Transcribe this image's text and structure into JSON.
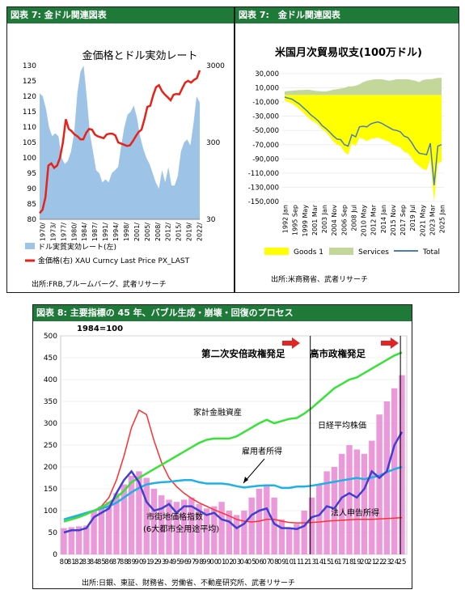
{
  "panels": {
    "p1_header": "図表 7: 金ドル関連図表",
    "p2_header": "図表 7:　金ドル関連図表",
    "p3_header": "図表 8: 主要指標の 45 年、バブル生成・崩壊・回復のプロセス"
  },
  "colors": {
    "header_green": "#1f7a3a",
    "dollar_area": "#9dc3e6",
    "gold_line": "#e8221a",
    "goods": "#ffff00",
    "services": "#c4d79b",
    "total": "#4a7ebb",
    "pink_bars": "#e787d4",
    "land": "#4040d0",
    "financial": "#39e239",
    "employee": "#1fb0e6",
    "corp": "#ff3030"
  },
  "chart_data": [
    {
      "type": "area",
      "title": "金価格とドル実効レート",
      "x_ticks": [
        "1970/",
        "1973/",
        "1977/",
        "1980/",
        "1984/",
        "1987/",
        "1991/",
        "1994/",
        "1998/",
        "2001/",
        "2005/",
        "2008/",
        "2012/",
        "2015/",
        "2019/",
        "2022/"
      ],
      "left_ticks": [
        "80",
        "85",
        "90",
        "95",
        "100",
        "105",
        "110",
        "115",
        "120",
        "125",
        "130"
      ],
      "right_ticks": [
        "30",
        "300",
        "3000"
      ],
      "ylim_left": [
        80,
        130
      ],
      "right_axis": "log",
      "ylim_right": [
        30,
        3000
      ],
      "series": [
        {
          "name": "ドル実質実効レート(左)",
          "values": [
            121,
            120,
            116,
            110,
            107,
            108,
            107,
            100,
            98,
            99,
            102,
            108,
            121,
            128,
            130,
            120,
            108,
            102,
            96,
            95,
            92,
            93,
            92,
            95,
            96,
            97,
            104,
            110,
            114,
            115,
            117,
            113,
            107,
            103,
            100,
            98,
            95,
            92,
            90,
            96,
            92,
            97,
            91,
            91,
            94,
            102,
            105,
            106,
            104,
            111,
            120,
            118
          ]
        },
        {
          "name": "金価格(右) XAU Curncy Last Price PX_LAST",
          "values": [
            36,
            40,
            58,
            150,
            160,
            140,
            150,
            190,
            300,
            600,
            450,
            420,
            380,
            360,
            330,
            330,
            400,
            450,
            440,
            380,
            360,
            350,
            340,
            380,
            390,
            390,
            370,
            300,
            290,
            280,
            270,
            275,
            310,
            360,
            410,
            440,
            600,
            870,
            900,
            1230,
            1570,
            1670,
            1400,
            1260,
            1160,
            1060,
            1250,
            1280,
            1270,
            1520,
            1800,
            1900,
            1800,
            1950,
            2050,
            2600
          ]
        }
      ]
    },
    {
      "type": "bar",
      "title": "米国月次貿易収支(100万ドル)",
      "x_ticks": [
        "1992 Jan",
        "1995 Sep",
        "1999 May",
        "2001 Mar",
        "2003 Jan",
        "2004 Nov",
        "2006 Sep",
        "2008 Jul",
        "2010 May",
        "2012 Mar",
        "2014 Jan",
        "2015 Nov",
        "2017 Sep",
        "2019 Jul",
        "2021 May",
        "2023 Mar",
        "2025 Jan"
      ],
      "y_ticks": [
        "30,000",
        "10,000",
        "-10,000",
        "-30,000",
        "-50,000",
        "-70,000",
        "-90,000",
        "-110,000",
        "-130,000",
        "-150,000"
      ],
      "ylim": [
        -150000,
        30000
      ],
      "series": [
        {
          "name": "Goods 1",
          "values": [
            -8000,
            -10000,
            -12000,
            -16000,
            -20000,
            -25000,
            -30000,
            -35000,
            -38000,
            -42000,
            -48000,
            -52000,
            -58000,
            -65000,
            -70000,
            -72000,
            -80000,
            -84000,
            -68000,
            -72000,
            -60000,
            -62000,
            -65000,
            -62000,
            -61000,
            -60000,
            -62000,
            -64000,
            -66000,
            -70000,
            -72000,
            -74000,
            -80000,
            -82000,
            -88000,
            -96000,
            -100000,
            -104000,
            -106000,
            -90000,
            -150000,
            -96000,
            -94000
          ]
        },
        {
          "name": "Services",
          "values": [
            5000,
            5500,
            6000,
            6500,
            7000,
            7000,
            7500,
            7000,
            6000,
            5500,
            5000,
            5000,
            6000,
            7500,
            8000,
            9000,
            10000,
            12000,
            12000,
            13000,
            15000,
            18000,
            20000,
            21000,
            22000,
            22000,
            22000,
            21000,
            20000,
            21000,
            22000,
            22000,
            22000,
            22000,
            21000,
            20000,
            18000,
            21000,
            22000,
            22000,
            23000,
            24000,
            24000
          ]
        },
        {
          "name": "Total",
          "values": [
            -3000,
            -4500,
            -6000,
            -9500,
            -13000,
            -18000,
            -22500,
            -28000,
            -32000,
            -36500,
            -43000,
            -47000,
            -52000,
            -57500,
            -62000,
            -63000,
            -70000,
            -72000,
            -56000,
            -59000,
            -45000,
            -44000,
            -45000,
            -41000,
            -39000,
            -38000,
            -40000,
            -43000,
            -46000,
            -49000,
            -50000,
            -52000,
            -58000,
            -60000,
            -67000,
            -76000,
            -82000,
            -83000,
            -84000,
            -68000,
            -127000,
            -72000,
            -70000
          ]
        }
      ]
    },
    {
      "type": "line",
      "title": "1984=100",
      "x_ticks": [
        "80",
        "81",
        "82",
        "83",
        "84",
        "85",
        "86",
        "87",
        "88",
        "89",
        "90",
        "91",
        "92",
        "93",
        "94",
        "95",
        "96",
        "97",
        "98",
        "99",
        "00",
        "01",
        "02",
        "03",
        "04",
        "05",
        "06",
        "07",
        "08",
        "09",
        "10",
        "11",
        "12",
        "13",
        "14",
        "15",
        "16",
        "17",
        "18",
        "19",
        "20",
        "21",
        "22",
        "23",
        "24",
        "25"
      ],
      "y_ticks": [
        "0",
        "50",
        "100",
        "150",
        "200",
        "250",
        "300",
        "350",
        "400",
        "450",
        "500"
      ],
      "ylim": [
        0,
        500
      ],
      "annotations": [
        "第二次安倍政権発足",
        "高市政権発足",
        "家計金融資産",
        "日経平均株価",
        "雇用者所得",
        "市街地価格指数",
        "(6大都市全用途平均)",
        "法人申告所得"
      ],
      "series": [
        {
          "name": "日経平均株価",
          "values": [
            50,
            55,
            55,
            60,
            85,
            95,
            105,
            140,
            170,
            190,
            165,
            120,
            100,
            105,
            115,
            95,
            110,
            110,
            100,
            90,
            95,
            80,
            75,
            60,
            70,
            90,
            100,
            105,
            70,
            60,
            60,
            58,
            65,
            85,
            90,
            110,
            105,
            130,
            140,
            130,
            150,
            190,
            175,
            190,
            250,
            280
          ]
        },
        {
          "name": "家計金融資産",
          "values": [
            75,
            80,
            85,
            92,
            100,
            108,
            118,
            130,
            145,
            165,
            175,
            185,
            195,
            205,
            215,
            225,
            235,
            245,
            255,
            262,
            265,
            265,
            265,
            270,
            280,
            290,
            300,
            308,
            300,
            305,
            310,
            312,
            322,
            335,
            350,
            365,
            380,
            390,
            400,
            405,
            415,
            425,
            435,
            445,
            455,
            462
          ]
        },
        {
          "name": "雇用者所得",
          "values": [
            80,
            85,
            90,
            95,
            100,
            105,
            110,
            118,
            130,
            142,
            152,
            160,
            163,
            165,
            166,
            168,
            170,
            170,
            165,
            162,
            162,
            162,
            160,
            156,
            153,
            155,
            157,
            158,
            158,
            152,
            152,
            155,
            155,
            157,
            160,
            163,
            166,
            169,
            172,
            175,
            172,
            176,
            180,
            188,
            195,
            200
          ]
        },
        {
          "name": "市街地価格指数",
          "values": [
            80,
            84,
            88,
            92,
            100,
            110,
            130,
            170,
            225,
            290,
            330,
            320,
            260,
            210,
            175,
            155,
            140,
            128,
            118,
            110,
            102,
            95,
            88,
            80,
            76,
            74,
            76,
            80,
            80,
            76,
            73,
            72,
            72,
            73,
            74,
            76,
            77,
            78,
            79,
            80,
            80,
            80,
            81,
            82,
            83,
            84
          ]
        },
        {
          "name": "法人申告所得",
          "values": [
            60,
            62,
            64,
            66,
            100,
            110,
            120,
            140,
            160,
            180,
            190,
            175,
            150,
            135,
            125,
            120,
            125,
            130,
            115,
            105,
            110,
            120,
            100,
            90,
            100,
            130,
            150,
            160,
            130,
            80,
            60,
            70,
            100,
            130,
            160,
            190,
            200,
            230,
            250,
            240,
            230,
            260,
            320,
            350,
            380,
            410
          ]
        }
      ]
    }
  ],
  "legend": {
    "p1": [
      "ドル実質実効レート(左)",
      "金価格(右) XAU Curncy Last Price PX_LAST"
    ],
    "p2": [
      "Goods 1",
      "Services",
      "Total"
    ]
  },
  "sources": {
    "p1": "出所:FRB,ブルームバーグ、武者リサーチ",
    "p2": "出所:米商務省、武者リサーチ",
    "p3": "出所:日銀、東証、財務省、労働省、不動産研究所、武者リサーチ"
  }
}
